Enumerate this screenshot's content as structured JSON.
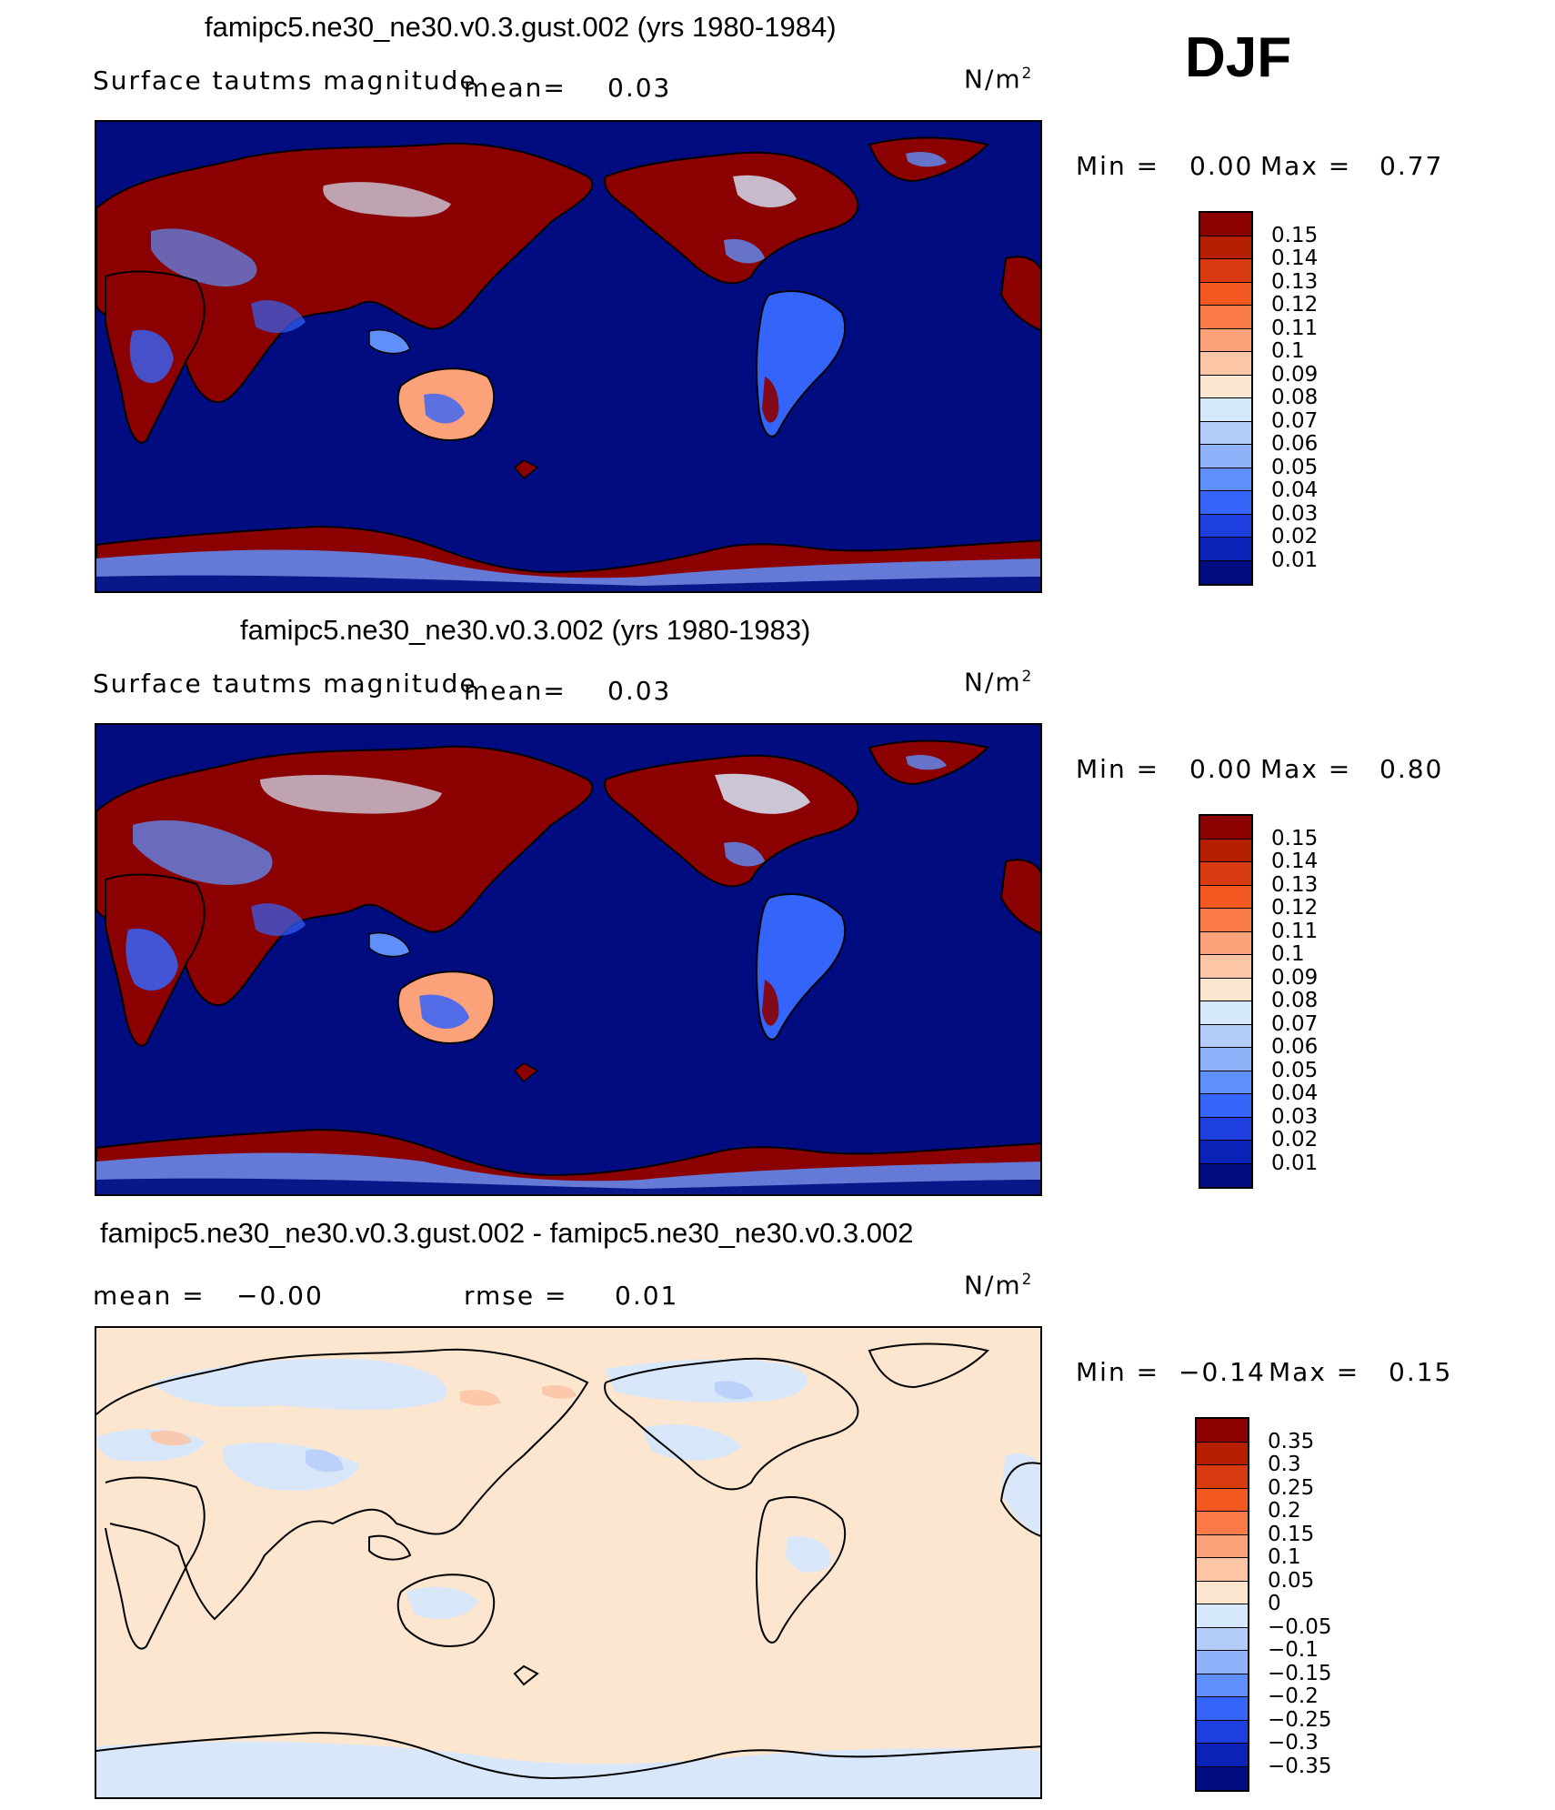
{
  "season": "DJF",
  "units": "N/m",
  "units_exp": "2",
  "panels": [
    {
      "title": "famipc5.ne30_ne30.v0.3.gust.002 (yrs 1980-1984)",
      "left_label": "Surface tautms magnitude",
      "mid_label": "mean=",
      "mid_value": "0.03",
      "min_label": "Min =",
      "min_value": "0.00",
      "max_label": "Max =",
      "max_value": "0.77",
      "cbar_labels": [
        "0.15",
        "0.14",
        "0.13",
        "0.12",
        "0.11",
        "0.1",
        "0.09",
        "0.08",
        "0.07",
        "0.06",
        "0.05",
        "0.04",
        "0.03",
        "0.02",
        "0.01"
      ],
      "cbar_colors": [
        "#8b0000",
        "#b51f00",
        "#d93a10",
        "#f2581f",
        "#fa7a48",
        "#fca27a",
        "#fcc5a6",
        "#fde6d0",
        "#d6e8fc",
        "#b4ccfa",
        "#8fb2fa",
        "#5e8ffb",
        "#3464fa",
        "#1d3fe0",
        "#0a22b8",
        "#000c80"
      ]
    },
    {
      "title": "famipc5.ne30_ne30.v0.3.002 (yrs 1980-1983)",
      "left_label": "Surface tautms magnitude",
      "mid_label": "mean=",
      "mid_value": "0.03",
      "min_label": "Min =",
      "min_value": "0.00",
      "max_label": "Max =",
      "max_value": "0.80",
      "cbar_labels": [
        "0.15",
        "0.14",
        "0.13",
        "0.12",
        "0.11",
        "0.1",
        "0.09",
        "0.08",
        "0.07",
        "0.06",
        "0.05",
        "0.04",
        "0.03",
        "0.02",
        "0.01"
      ],
      "cbar_colors": [
        "#8b0000",
        "#b51f00",
        "#d93a10",
        "#f2581f",
        "#fa7a48",
        "#fca27a",
        "#fcc5a6",
        "#fde6d0",
        "#d6e8fc",
        "#b4ccfa",
        "#8fb2fa",
        "#5e8ffb",
        "#3464fa",
        "#1d3fe0",
        "#0a22b8",
        "#000c80"
      ]
    },
    {
      "title": "famipc5.ne30_ne30.v0.3.gust.002 - famipc5.ne30_ne30.v0.3.002",
      "left_label": "mean =",
      "left_value": "−0.00",
      "mid_label": "rmse =",
      "mid_value": "0.01",
      "min_label": "Min =",
      "min_value": "−0.14",
      "max_label": "Max =",
      "max_value": "0.15",
      "cbar_labels": [
        "0.35",
        "0.3",
        "0.25",
        "0.2",
        "0.15",
        "0.1",
        "0.05",
        "0",
        "−0.05",
        "−0.1",
        "−0.15",
        "−0.2",
        "−0.25",
        "−0.3",
        "−0.35"
      ],
      "cbar_colors": [
        "#8b0000",
        "#b51f00",
        "#d93a10",
        "#f2581f",
        "#fa7a48",
        "#fca27a",
        "#fcc5a6",
        "#fde6d0",
        "#d6e8fc",
        "#b4ccfa",
        "#8fb2fa",
        "#5e8ffb",
        "#3464fa",
        "#1d3fe0",
        "#0a22b8",
        "#000c80"
      ]
    }
  ]
}
